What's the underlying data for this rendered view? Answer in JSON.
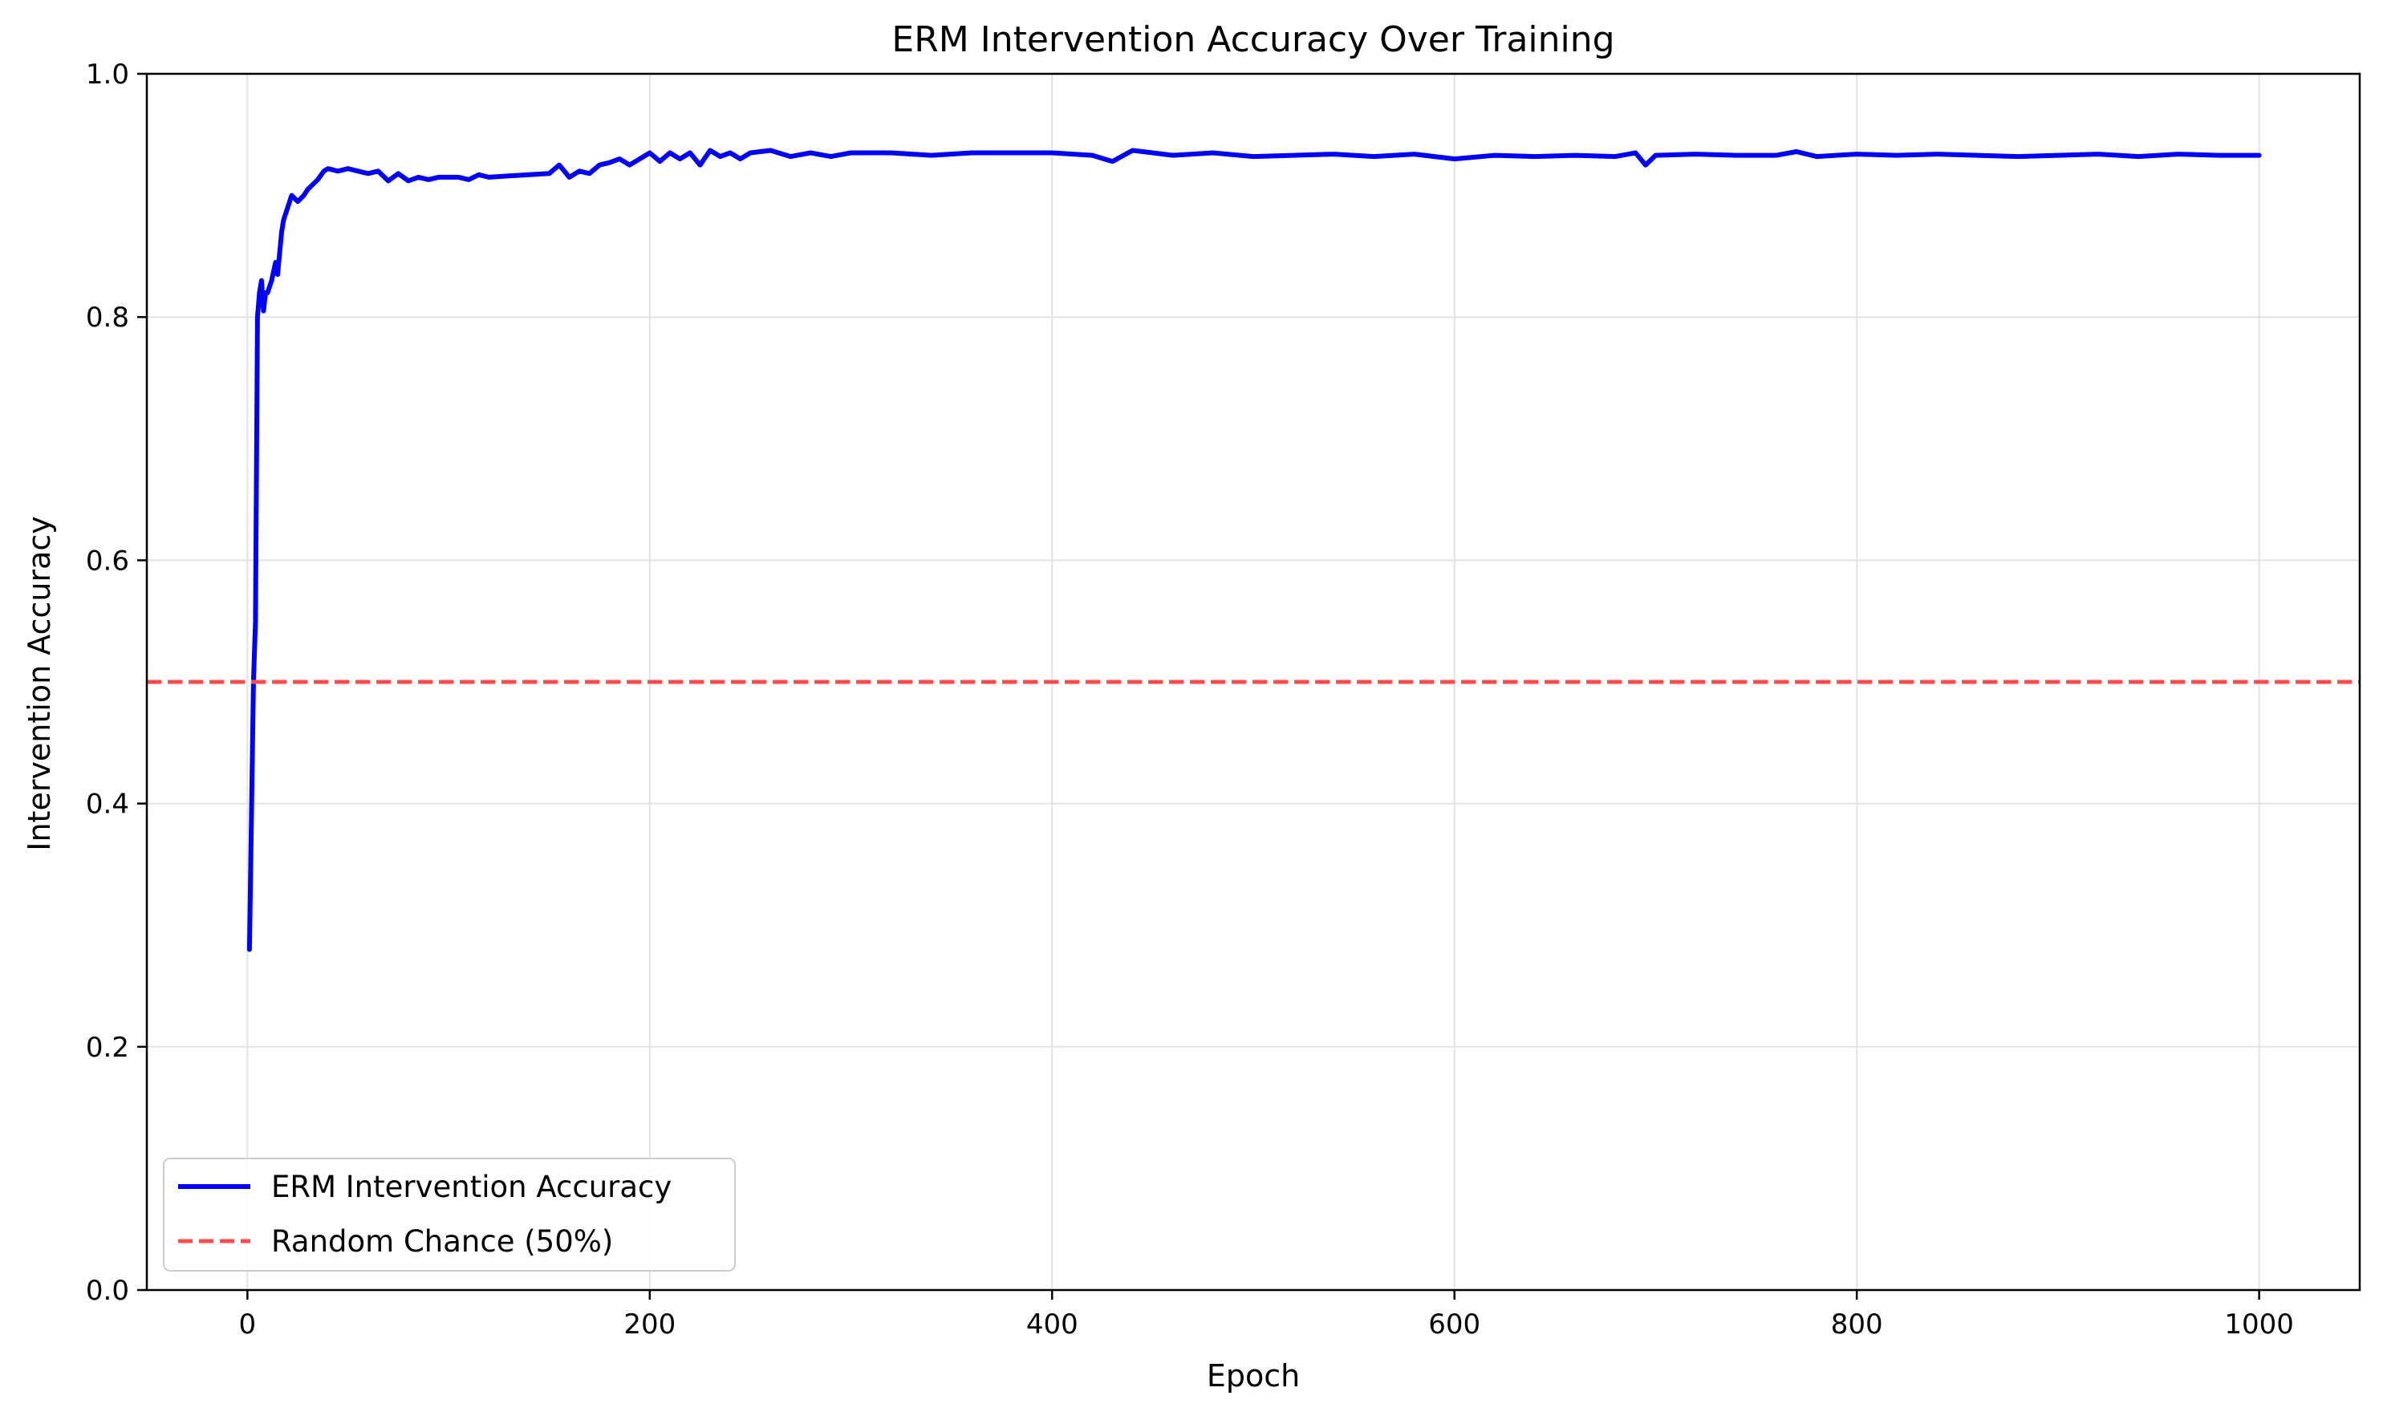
{
  "chart_data": {
    "type": "line",
    "title": "ERM Intervention Accuracy Over Training",
    "xlabel": "Epoch",
    "ylabel": "Intervention Accuracy",
    "xlim": [
      -50,
      1050
    ],
    "ylim": [
      0.0,
      1.0
    ],
    "x_ticks": [
      0,
      200,
      400,
      600,
      800,
      1000
    ],
    "y_ticks": [
      0.0,
      0.2,
      0.4,
      0.6,
      0.8,
      1.0
    ],
    "x_tick_labels": [
      "0",
      "200",
      "400",
      "600",
      "800",
      "1000"
    ],
    "y_tick_labels": [
      "0.0",
      "0.2",
      "0.4",
      "0.6",
      "0.8",
      "1.0"
    ],
    "grid": true,
    "legend_position": "lower-left",
    "series": [
      {
        "name": "ERM Intervention Accuracy",
        "color": "#0000ff",
        "style": "solid",
        "x": [
          1,
          3,
          4,
          5,
          6,
          7,
          8,
          9,
          10,
          12,
          14,
          15,
          17,
          18,
          20,
          22,
          25,
          28,
          30,
          35,
          38,
          40,
          45,
          50,
          55,
          60,
          65,
          70,
          75,
          80,
          85,
          90,
          95,
          100,
          105,
          110,
          115,
          120,
          130,
          140,
          150,
          155,
          160,
          165,
          170,
          175,
          180,
          185,
          190,
          195,
          200,
          205,
          210,
          215,
          220,
          225,
          230,
          235,
          240,
          245,
          250,
          260,
          270,
          280,
          290,
          300,
          320,
          340,
          360,
          380,
          400,
          420,
          430,
          440,
          450,
          460,
          480,
          500,
          520,
          540,
          560,
          580,
          600,
          620,
          640,
          660,
          680,
          690,
          695,
          700,
          720,
          740,
          760,
          770,
          780,
          800,
          820,
          840,
          860,
          880,
          900,
          920,
          940,
          960,
          980,
          1000
        ],
        "y": [
          0.28,
          0.5,
          0.55,
          0.8,
          0.82,
          0.83,
          0.805,
          0.82,
          0.82,
          0.83,
          0.845,
          0.835,
          0.87,
          0.88,
          0.89,
          0.9,
          0.895,
          0.9,
          0.905,
          0.913,
          0.92,
          0.922,
          0.92,
          0.922,
          0.92,
          0.918,
          0.92,
          0.912,
          0.918,
          0.912,
          0.915,
          0.913,
          0.915,
          0.915,
          0.915,
          0.913,
          0.917,
          0.915,
          0.916,
          0.917,
          0.918,
          0.925,
          0.915,
          0.92,
          0.918,
          0.925,
          0.927,
          0.93,
          0.925,
          0.93,
          0.935,
          0.928,
          0.935,
          0.93,
          0.935,
          0.925,
          0.937,
          0.932,
          0.935,
          0.93,
          0.935,
          0.937,
          0.932,
          0.935,
          0.932,
          0.935,
          0.935,
          0.933,
          0.935,
          0.935,
          0.935,
          0.933,
          0.928,
          0.937,
          0.935,
          0.933,
          0.935,
          0.932,
          0.933,
          0.934,
          0.932,
          0.934,
          0.93,
          0.933,
          0.932,
          0.933,
          0.932,
          0.935,
          0.925,
          0.933,
          0.934,
          0.933,
          0.933,
          0.936,
          0.932,
          0.934,
          0.933,
          0.934,
          0.933,
          0.932,
          0.933,
          0.934,
          0.932,
          0.934,
          0.933,
          0.933
        ]
      },
      {
        "name": "Random Chance (50%)",
        "color": "#ff4d4d",
        "style": "dashed",
        "y_constant": 0.5
      }
    ]
  }
}
